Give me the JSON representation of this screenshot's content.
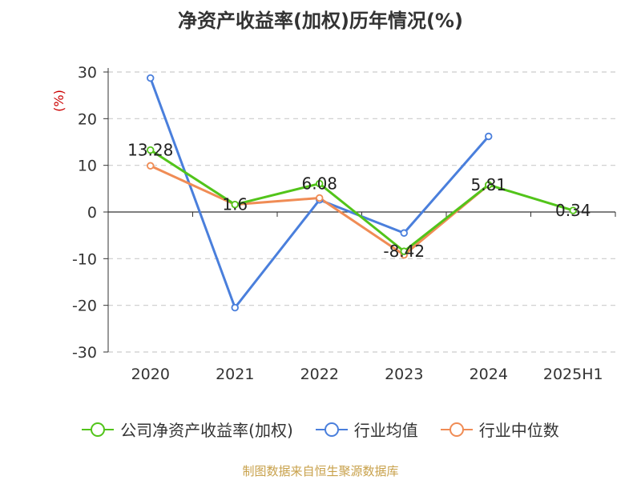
{
  "chart_data": {
    "type": "line",
    "title": "净资产收益率(加权)历年情况(%)",
    "ylabel": "(%)",
    "categories": [
      "2020",
      "2021",
      "2022",
      "2023",
      "2024",
      "2025H1"
    ],
    "ylim": [
      -30,
      30
    ],
    "yticks": [
      30,
      20,
      10,
      0,
      -10,
      -20,
      -30
    ],
    "grid": true,
    "legend_position": "bottom",
    "series": [
      {
        "name": "公司净资产收益率(加权)",
        "color": "#52c41a",
        "values": [
          13.28,
          1.6,
          6.08,
          -8.42,
          5.81,
          0.34
        ],
        "labels": [
          "13.28",
          "1.6",
          "6.08",
          "-8.42",
          "5.81",
          "0.34"
        ]
      },
      {
        "name": "行业均值",
        "color": "#4a7fdc",
        "values": [
          28.7,
          -20.5,
          2.6,
          -4.5,
          16.2,
          null
        ]
      },
      {
        "name": "行业中位数",
        "color": "#f08c55",
        "values": [
          9.9,
          1.6,
          3.0,
          -9.2,
          5.8,
          null
        ]
      }
    ]
  },
  "footer": {
    "source": "制图数据来自恒生聚源数据库"
  }
}
